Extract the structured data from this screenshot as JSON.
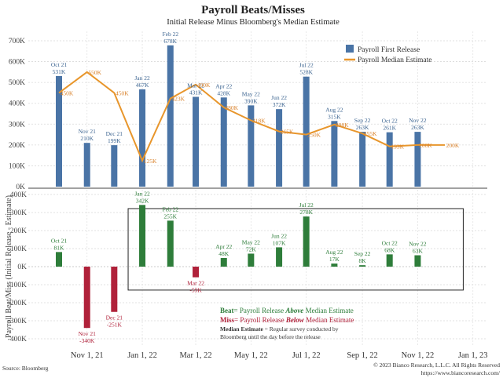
{
  "chart_data": [
    {
      "type": "bar+line",
      "title": "Payroll Beats/Misses",
      "subtitle": "Initial Release Minus Bloomberg's Median Estimate",
      "ylim": [
        0,
        750
      ],
      "yticks": [
        "0K",
        "100K",
        "200K",
        "300K",
        "400K",
        "500K",
        "600K",
        "700K"
      ],
      "grid": true,
      "legend_position": "top-right",
      "series": [
        {
          "name": "Payroll First Release",
          "type": "bar",
          "color": "#4a74a6",
          "points": [
            {
              "x": "2021-10-01",
              "value": 531,
              "label": "Oct 21",
              "value_label": "531K"
            },
            {
              "x": "2021-11-01",
              "value": 210,
              "label": "Nov 21",
              "value_label": "210K"
            },
            {
              "x": "2021-12-01",
              "value": 199,
              "label": "Dec 21",
              "value_label": "199K"
            },
            {
              "x": "2022-01-01",
              "value": 467,
              "label": "Jan 22",
              "value_label": "467K"
            },
            {
              "x": "2022-02-01",
              "value": 678,
              "label": "Feb 22",
              "value_label": "678K"
            },
            {
              "x": "2022-03-01",
              "value": 431,
              "label": "Mar 22",
              "value_label": "431K"
            },
            {
              "x": "2022-04-01",
              "value": 428,
              "label": "Apr 22",
              "value_label": "428K"
            },
            {
              "x": "2022-05-01",
              "value": 390,
              "label": "May 22",
              "value_label": "390K"
            },
            {
              "x": "2022-06-01",
              "value": 372,
              "label": "Jun 22",
              "value_label": "372K"
            },
            {
              "x": "2022-07-01",
              "value": 528,
              "label": "Jul 22",
              "value_label": "528K"
            },
            {
              "x": "2022-08-01",
              "value": 315,
              "label": "Aug 22",
              "value_label": "315K"
            },
            {
              "x": "2022-09-01",
              "value": 263,
              "label": "Sep 22",
              "value_label": "263K"
            },
            {
              "x": "2022-10-01",
              "value": 261,
              "label": "Oct 22",
              "value_label": "261K"
            },
            {
              "x": "2022-11-01",
              "value": 263,
              "label": "Nov 22",
              "value_label": "263K"
            }
          ]
        },
        {
          "name": "Payroll Median Estimate",
          "type": "line",
          "color": "#e8962c",
          "points": [
            {
              "x": "2021-10-01",
              "value": 450,
              "value_label": "450K"
            },
            {
              "x": "2021-11-01",
              "value": 550,
              "value_label": "550K"
            },
            {
              "x": "2021-12-01",
              "value": 450,
              "value_label": "450K"
            },
            {
              "x": "2022-01-01",
              "value": 125,
              "value_label": "125K"
            },
            {
              "x": "2022-02-01",
              "value": 423,
              "value_label": "423K"
            },
            {
              "x": "2022-03-01",
              "value": 490,
              "value_label": "490K"
            },
            {
              "x": "2022-04-01",
              "value": 380,
              "value_label": "380K"
            },
            {
              "x": "2022-05-01",
              "value": 318,
              "value_label": "318K"
            },
            {
              "x": "2022-06-01",
              "value": 265,
              "value_label": "265K"
            },
            {
              "x": "2022-07-01",
              "value": 250,
              "value_label": "250K"
            },
            {
              "x": "2022-08-01",
              "value": 298,
              "value_label": "298K"
            },
            {
              "x": "2022-09-01",
              "value": 255,
              "value_label": "255K"
            },
            {
              "x": "2022-10-01",
              "value": 193,
              "value_label": "193K"
            },
            {
              "x": "2022-11-01",
              "value": 200,
              "value_label": "200K"
            },
            {
              "x": "2022-12-01",
              "value": 200,
              "value_label": "200K"
            }
          ]
        }
      ]
    },
    {
      "type": "bar",
      "ylabel": "Payroll Beat/Miss (Initial Release - Estimate)",
      "ylim": [
        -440,
        420
      ],
      "yticks": [
        "-400K",
        "-300K",
        "-200K",
        "-100K",
        "0K",
        "100K",
        "200K",
        "300K",
        "400K"
      ],
      "grid": true,
      "beat_color": "#2e7d3a",
      "miss_color": "#b0213a",
      "points": [
        {
          "x": "2021-10-01",
          "value": 81,
          "label": "Oct 21",
          "value_label": "81K"
        },
        {
          "x": "2021-11-01",
          "value": -340,
          "label": "Nov 21",
          "value_label": "-340K"
        },
        {
          "x": "2021-12-01",
          "value": -251,
          "label": "Dec 21",
          "value_label": "-251K"
        },
        {
          "x": "2022-01-01",
          "value": 342,
          "label": "Jan 22",
          "value_label": "342K"
        },
        {
          "x": "2022-02-01",
          "value": 255,
          "label": "Feb 22",
          "value_label": "255K"
        },
        {
          "x": "2022-03-01",
          "value": -59,
          "label": "Mar 22",
          "value_label": "-59K"
        },
        {
          "x": "2022-04-01",
          "value": 48,
          "label": "Apr 22",
          "value_label": "48K"
        },
        {
          "x": "2022-05-01",
          "value": 72,
          "label": "May 22",
          "value_label": "72K"
        },
        {
          "x": "2022-06-01",
          "value": 107,
          "label": "Jun 22",
          "value_label": "107K"
        },
        {
          "x": "2022-07-01",
          "value": 278,
          "label": "Jul 22",
          "value_label": "278K"
        },
        {
          "x": "2022-08-01",
          "value": 17,
          "label": "Aug 22",
          "value_label": "17K"
        },
        {
          "x": "2022-09-01",
          "value": 8,
          "label": "Sep 22",
          "value_label": "8K"
        },
        {
          "x": "2022-10-01",
          "value": 68,
          "label": "Oct 22",
          "value_label": "68K"
        },
        {
          "x": "2022-11-01",
          "value": 63,
          "label": "Nov 22",
          "value_label": "63K"
        }
      ],
      "highlight_box": {
        "from": "2022-01-01",
        "to": "2022-11-01",
        "ylim": [
          -130,
          300
        ]
      },
      "notes": {
        "beat_prefix": "Beat",
        "beat_mid": "= Payroll Release ",
        "beat_em": "Above",
        "beat_suffix": " Median Estimate",
        "miss_prefix": "Miss",
        "miss_mid": "= Payroll Release ",
        "miss_em": "Below",
        "miss_suffix": " Median Estimate",
        "median_bold": "Median Estimate",
        "median_text": " = Regular survey conducted by",
        "median_text_2": "Bloomberg until the day before the release"
      }
    }
  ],
  "x_axis": {
    "ticks": [
      {
        "x": "2021-11-01",
        "label": "Nov 1, 21"
      },
      {
        "x": "2022-01-01",
        "label": "Jan 1, 22"
      },
      {
        "x": "2022-03-01",
        "label": "Mar 1, 22"
      },
      {
        "x": "2022-05-01",
        "label": "May 1, 22"
      },
      {
        "x": "2022-07-01",
        "label": "Jul 1, 22"
      },
      {
        "x": "2022-09-01",
        "label": "Sep 1, 22"
      },
      {
        "x": "2022-11-01",
        "label": "Nov 1, 22"
      },
      {
        "x": "2023-01-01",
        "label": "Jan 1, 23"
      }
    ]
  },
  "footer": {
    "source": "Source: Bloomberg",
    "copyright": "© 2023 Bianco Research, L.L.C. All Rights Reserved",
    "url": "https://www.biancoresearch.com/"
  }
}
